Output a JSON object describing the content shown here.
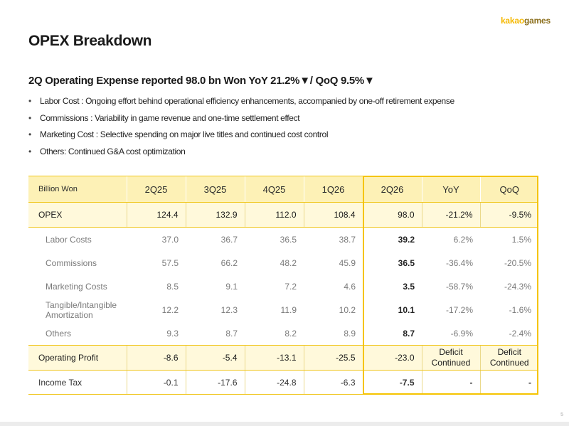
{
  "logo": {
    "part1": "kakao",
    "part2": "games"
  },
  "page_title": "OPEX Breakdown",
  "subtitle": "2Q Operating Expense reported 98.0 bn Won YoY 21.2%▼/ QoQ 9.5%▼",
  "bullets": [
    "Labor Cost : Ongoing effort behind operational efficiency enhancements, accompanied by one-off retirement expense",
    "Commissions : Variability in game revenue and one-time settlement effect",
    "Marketing Cost : Selective spending on major live titles and continued cost control",
    "Others: Continued G&A cost optimization"
  ],
  "table": {
    "headers": [
      "Billion Won",
      "2Q25",
      "3Q25",
      "4Q25",
      "1Q26",
      "2Q26",
      "YoY",
      "QoQ"
    ],
    "rows": [
      {
        "label": "OPEX",
        "values": [
          "124.4",
          "132.9",
          "112.0",
          "108.4",
          "98.0",
          "-21.2%",
          "-9.5%"
        ]
      },
      {
        "label": "Labor Costs",
        "values": [
          "37.0",
          "36.7",
          "36.5",
          "38.7",
          "39.2",
          "6.2%",
          "1.5%"
        ]
      },
      {
        "label": "Commissions",
        "values": [
          "57.5",
          "66.2",
          "48.2",
          "45.9",
          "36.5",
          "-36.4%",
          "-20.5%"
        ]
      },
      {
        "label": "Marketing Costs",
        "values": [
          "8.5",
          "9.1",
          "7.2",
          "4.6",
          "3.5",
          "-58.7%",
          "-24.3%"
        ]
      },
      {
        "label": "Tangible/Intangible Amortization",
        "values": [
          "12.2",
          "12.3",
          "11.9",
          "10.2",
          "10.1",
          "-17.2%",
          "-1.6%"
        ]
      },
      {
        "label": "Others",
        "values": [
          "9.3",
          "8.7",
          "8.2",
          "8.9",
          "8.7",
          "-6.9%",
          "-2.4%"
        ]
      },
      {
        "label": "Operating Profit",
        "values": [
          "-8.6",
          "-5.4",
          "-13.1",
          "-25.5",
          "-23.0",
          "Deficit Continued",
          "Deficit Continued"
        ]
      },
      {
        "label": "Income Tax",
        "values": [
          "-0.1",
          "-17.6",
          "-24.8",
          "-6.3",
          "-7.5",
          "-",
          "-"
        ]
      }
    ]
  },
  "page_number": "5",
  "colors": {
    "accent": "#f5c400",
    "header_bg": "#fdf1b6",
    "row_bg": "#fff9db"
  }
}
